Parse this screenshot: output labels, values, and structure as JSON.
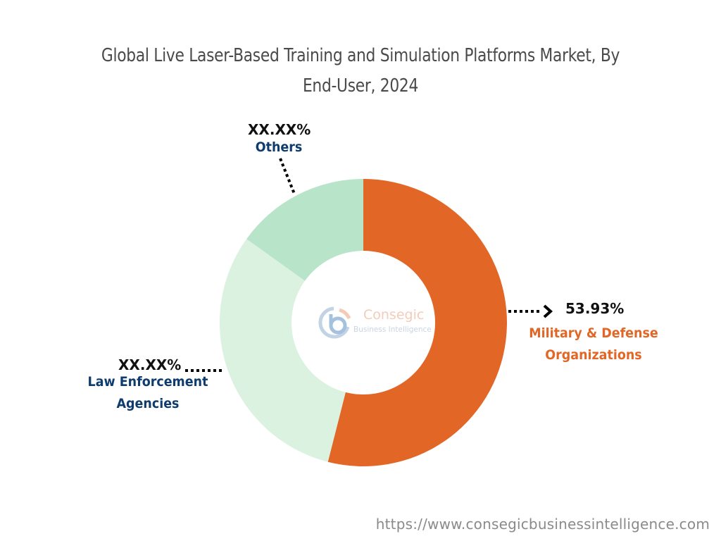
{
  "header": {
    "title_line1": "Global Live Laser-Based Training and Simulation Platforms Market, By",
    "title_line2": "End-User, 2024"
  },
  "chart_data": {
    "type": "pie",
    "subtype": "donut",
    "title": "Global Live Laser-Based Training and Simulation Platforms Market, By End-User, 2024",
    "categories": [
      "Military & Defense Organizations",
      "Law Enforcement Agencies",
      "Others"
    ],
    "values": [
      53.93,
      30.9,
      15.1
    ],
    "value_labels": [
      "53.93%",
      "XX.XX%",
      "XX.XX%"
    ],
    "colors": [
      "#E26626",
      "#DAF2DF",
      "#B8E4CA"
    ],
    "start_angle_deg": 0,
    "direction": "clockwise",
    "legend": "none (callout labels)"
  },
  "labels": {
    "military": {
      "pct": "53.93%",
      "line1": "Military & Defense",
      "line2": "Organizations"
    },
    "law": {
      "pct": "XX.XX%",
      "line1": "Law Enforcement",
      "line2": "Agencies"
    },
    "others": {
      "pct": "XX.XX%",
      "line1": "Others"
    }
  },
  "logo": {
    "name": "Consegic",
    "tagline": "Business Intelligence"
  },
  "footer": {
    "url": "https://www.consegicbusinessintelligence.com"
  }
}
